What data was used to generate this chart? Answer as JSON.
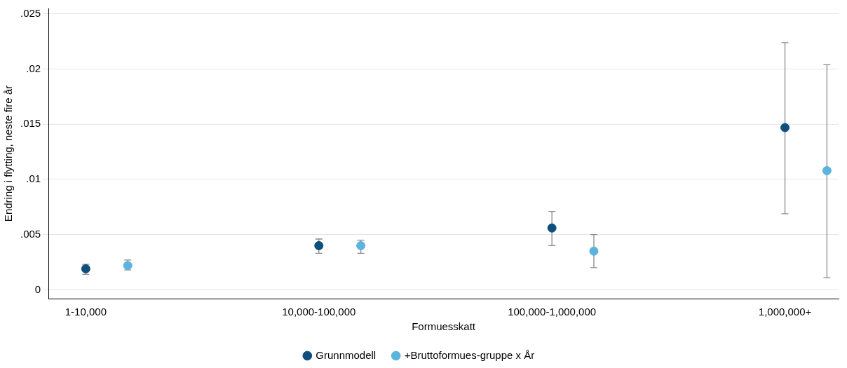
{
  "chart_data": {
    "type": "scatter",
    "xlabel": "Formuesskatt",
    "ylabel": "Endring i flytting, neste fire år",
    "series": [
      {
        "name": "Grunnmodell",
        "color": "#0e4f7c",
        "x": [
          "1-10,000",
          "10,000-100,000",
          "100,000-1,000,000",
          "1,000,000+"
        ],
        "values": [
          0.0019,
          0.004,
          0.0056,
          0.0147
        ],
        "errors": [
          [
            0.0014,
            0.0023
          ],
          [
            0.0033,
            0.0046
          ],
          [
            0.004,
            0.0071
          ],
          [
            0.0069,
            0.0224
          ]
        ]
      },
      {
        "name": "+Bruttoformues-gruppe x År",
        "color": "#5bb4dd",
        "x": [
          "1-10,000",
          "10,000-100,000",
          "100,000-1,000,000",
          "1,000,000+"
        ],
        "values": [
          0.0022,
          0.004,
          0.0035,
          0.0108
        ],
        "errors": [
          [
            0.0018,
            0.0027
          ],
          [
            0.0033,
            0.0045
          ],
          [
            0.002,
            0.005
          ],
          [
            0.0011,
            0.0204
          ]
        ]
      }
    ],
    "categories": [
      "1-10,000",
      "10,000-100,000",
      "100,000-1,000,000",
      "1,000,000+"
    ],
    "ylim": [
      -0.0008,
      0.0255
    ],
    "yticks": [
      0,
      {
        "value": 0.005,
        "label": ".005"
      },
      {
        "value": 0.01,
        "label": ".01"
      },
      {
        "value": 0.015,
        "label": ".015"
      },
      {
        "value": 0.02,
        "label": ".02"
      },
      {
        "value": 0.025,
        "label": ".025"
      }
    ],
    "grid": "y",
    "legend": "bottom",
    "marker": "circle"
  }
}
